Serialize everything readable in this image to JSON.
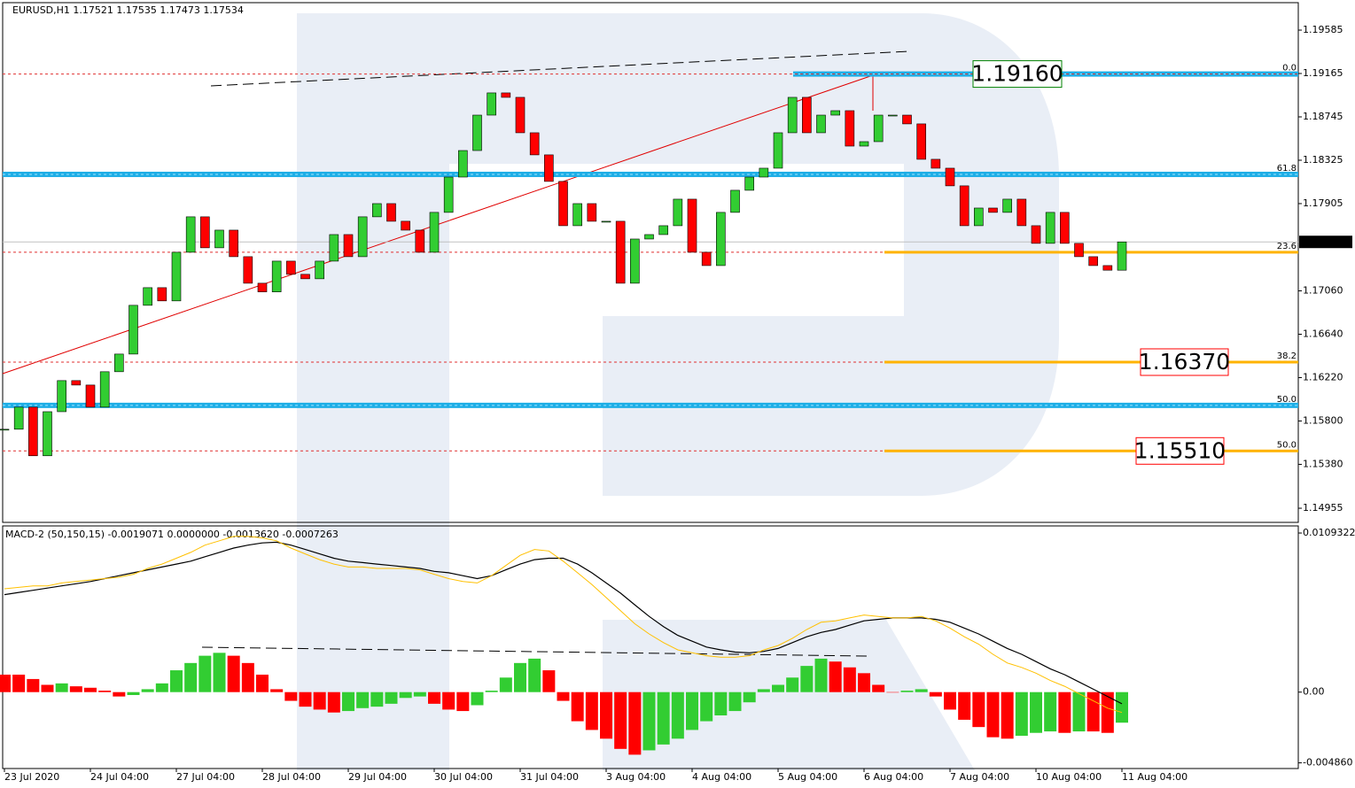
{
  "chart_data": [
    {
      "type": "candlestick",
      "title": "EURUSD,H1  1.17521 1.17535 1.17473 1.17534",
      "categories": [
        "23 Jul 2020",
        null,
        null,
        null,
        null,
        null,
        "24 Jul 04:00",
        null,
        null,
        null,
        null,
        null,
        "27 Jul 04:00",
        null,
        null,
        null,
        null,
        null,
        "28 Jul 04:00",
        null,
        null,
        null,
        null,
        null,
        "29 Jul 04:00",
        null,
        null,
        null,
        null,
        null,
        "30 Jul 04:00",
        null,
        null,
        null,
        null,
        null,
        "31 Jul 04:00",
        null,
        null,
        null,
        null,
        null,
        "3 Aug 04:00",
        null,
        null,
        null,
        null,
        null,
        "4 Aug 04:00",
        null,
        null,
        null,
        null,
        null,
        "5 Aug 04:00",
        null,
        null,
        null,
        null,
        null,
        "6 Aug 04:00",
        null,
        null,
        null,
        null,
        null,
        "7 Aug 04:00",
        null,
        null,
        null,
        null,
        null,
        "10 Aug 04:00",
        null,
        null,
        null,
        null,
        null,
        "11 Aug 04:00"
      ],
      "closes": [
        1.1572,
        1.15934,
        1.15463,
        1.1589,
        1.16191,
        1.16148,
        1.15934,
        1.16277,
        1.16448,
        1.1692,
        1.17091,
        1.16963,
        1.17434,
        1.17777,
        1.17477,
        1.17648,
        1.17391,
        1.17134,
        1.1705,
        1.17348,
        1.1722,
        1.17177,
        1.17348,
        1.17605,
        1.17391,
        1.17777,
        1.17905,
        1.17734,
        1.17648,
        1.17434,
        1.1782,
        1.18162,
        1.18419,
        1.18762,
        1.18977,
        1.18934,
        1.18591,
        1.18377,
        1.1812,
        1.17691,
        1.17905,
        1.17734,
        1.17734,
        1.17134,
        1.17562,
        1.17605,
        1.17691,
        1.17948,
        1.17434,
        1.17305,
        1.1782,
        1.18034,
        1.18162,
        1.18248,
        1.18591,
        1.18934,
        1.18591,
        1.18762,
        1.18805,
        1.18462,
        1.18505,
        1.18762,
        1.18762,
        1.18677,
        1.18334,
        1.18248,
        1.18077,
        1.17691,
        1.17862,
        1.1782,
        1.17948,
        1.17691,
        1.1752,
        1.1782,
        1.1752,
        1.17391,
        1.17305,
        1.1726,
        1.17534
      ],
      "up_color": "#32cd32",
      "down_color": "#ff0000",
      "ylim": [
        1.14818,
        1.19851
      ],
      "yticks": [
        1.19585,
        1.19165,
        1.18745,
        1.18325,
        1.17905,
        {
          "value": 1.1706,
          "label": "1.17060"
        },
        {
          "value": 1.1664,
          "label": "1.16640"
        },
        {
          "value": 1.1622,
          "label": "1.16220"
        },
        {
          "value": 1.158,
          "label": "1.15800"
        },
        {
          "value": 1.1538,
          "label": "1.15380"
        },
        1.14955
      ],
      "last_price": 1.17534,
      "fib_levels": [
        {
          "label": "0.0",
          "value": 1.1916,
          "label_color": "#ff0000",
          "dashed": true,
          "band": "partial",
          "highlight": false
        },
        {
          "label": "61.8",
          "value": 1.18188,
          "label_color": "#008000",
          "dashed": false,
          "band": "full",
          "highlight": false
        },
        {
          "label": "23.6",
          "value": 1.17434,
          "label_color": "#ff0000",
          "dashed": true,
          "band": "none",
          "highlight": true
        },
        {
          "label": "38.2",
          "value": 1.1637,
          "label_color": "#ff0000",
          "dashed": true,
          "band": "none",
          "highlight": true
        },
        {
          "label": "50.0",
          "value": 1.15951,
          "label_color": "#008000",
          "dashed": false,
          "band": "full",
          "highlight": false
        },
        {
          "label": "50.0",
          "value": 1.1551,
          "label_color": "#ff0000",
          "dashed": true,
          "band": "none",
          "highlight": true
        }
      ],
      "annotations": [
        {
          "text": "1.19160",
          "value": 1.1916,
          "color": "#008000"
        },
        {
          "text": "1.16370",
          "value": 1.1637,
          "color": "#ff0000"
        },
        {
          "text": "1.15510",
          "value": 1.1551,
          "color": "#ff0000"
        }
      ]
    },
    {
      "type": "macd",
      "title": "MACD-2 (50,150,15) -0.0019071 0.0000000 -0.0013620 -0.0007263",
      "ylim": [
        -0.00525,
        0.01142
      ],
      "yticks": [
        0.0109322,
        {
          "value": 0,
          "label": "0.00"
        },
        {
          "value": -0.00486,
          "label": "-0.004860"
        }
      ],
      "histogram": {
        "up_color": "#32cd32",
        "down_color": "#ff0000",
        "values": [
          0.0012,
          0.0012,
          0.0009,
          0.0005,
          0.0006,
          0.0004,
          0.0003,
          0.0001,
          -0.0003,
          -0.0002,
          0.0002,
          0.0006,
          0.0015,
          0.002,
          0.0025,
          0.0027,
          0.0025,
          0.002,
          0.0012,
          0.0002,
          -0.0006,
          -0.001,
          -0.0012,
          -0.0014,
          -0.0013,
          -0.0011,
          -0.001,
          -0.0008,
          -0.0004,
          -0.0003,
          -0.0008,
          -0.0012,
          -0.0013,
          -0.0009,
          0.0001,
          0.001,
          0.002,
          0.0023,
          0.0015,
          -0.0006,
          -0.002,
          -0.0026,
          -0.0032,
          -0.0039,
          -0.0043,
          -0.004,
          -0.0036,
          -0.0032,
          -0.0026,
          -0.002,
          -0.0016,
          -0.0013,
          -0.0007,
          0.0002,
          0.0005,
          0.001,
          0.0018,
          0.0023,
          0.0021,
          0.0017,
          0.0013,
          0.0005,
          0.0,
          0.0001,
          0.0002,
          -0.0003,
          -0.0012,
          -0.0019,
          -0.0024,
          -0.0031,
          -0.0032,
          -0.003,
          -0.0028,
          -0.0027,
          -0.0028,
          -0.0027,
          -0.0027,
          -0.0028,
          -0.0021
        ]
      },
      "series": [
        {
          "color": "#000000",
          "values": [
            0.0067,
            0.00685,
            0.007,
            0.00715,
            0.0073,
            0.00745,
            0.0076,
            0.0078,
            0.008,
            0.0082,
            0.0084,
            0.0086,
            0.0088,
            0.009,
            0.0093,
            0.0096,
            0.0099,
            0.0101,
            0.01025,
            0.0103,
            0.0101,
            0.0098,
            0.0095,
            0.0092,
            0.009,
            0.0089,
            0.0088,
            0.0087,
            0.0086,
            0.0085,
            0.0083,
            0.0082,
            0.008,
            0.0078,
            0.008,
            0.0084,
            0.0088,
            0.0091,
            0.0092,
            0.0092,
            0.0088,
            0.0082,
            0.0075,
            0.0068,
            0.006,
            0.0052,
            0.0045,
            0.0039,
            0.0035,
            0.0031,
            0.0029,
            0.00275,
            0.0027,
            0.0028,
            0.003,
            0.0034,
            0.0038,
            0.0041,
            0.0043,
            0.0046,
            0.0049,
            0.005,
            0.0051,
            0.0051,
            0.0051,
            0.005,
            0.0048,
            0.0044,
            0.004,
            0.0035,
            0.003,
            0.0026,
            0.0021,
            0.0016,
            0.0012,
            0.0007,
            0.0002,
            -0.0003,
            -0.0008
          ]
        },
        {
          "color": "#ffc000",
          "values": [
            0.0071,
            0.0072,
            0.0073,
            0.0073,
            0.0075,
            0.0076,
            0.0077,
            0.0078,
            0.0079,
            0.0081,
            0.0085,
            0.0088,
            0.0092,
            0.0096,
            0.0101,
            0.0104,
            0.0107,
            0.0107,
            0.0106,
            0.0104,
            0.0099,
            0.0095,
            0.0091,
            0.0088,
            0.0086,
            0.0086,
            0.0085,
            0.0085,
            0.0085,
            0.0084,
            0.0081,
            0.0078,
            0.0076,
            0.0075,
            0.008,
            0.0087,
            0.0094,
            0.0098,
            0.0097,
            0.009,
            0.0082,
            0.0074,
            0.0065,
            0.0056,
            0.0047,
            0.004,
            0.0034,
            0.0029,
            0.0027,
            0.0025,
            0.0024,
            0.0024,
            0.0025,
            0.0029,
            0.0032,
            0.0037,
            0.0043,
            0.0048,
            0.0049,
            0.0051,
            0.0053,
            0.0052,
            0.0051,
            0.0051,
            0.0052,
            0.0049,
            0.0044,
            0.0038,
            0.0033,
            0.0026,
            0.002,
            0.0017,
            0.0013,
            0.0008,
            0.0004,
            -0.0001,
            -0.0006,
            -0.0011,
            -0.0014
          ]
        }
      ]
    }
  ]
}
